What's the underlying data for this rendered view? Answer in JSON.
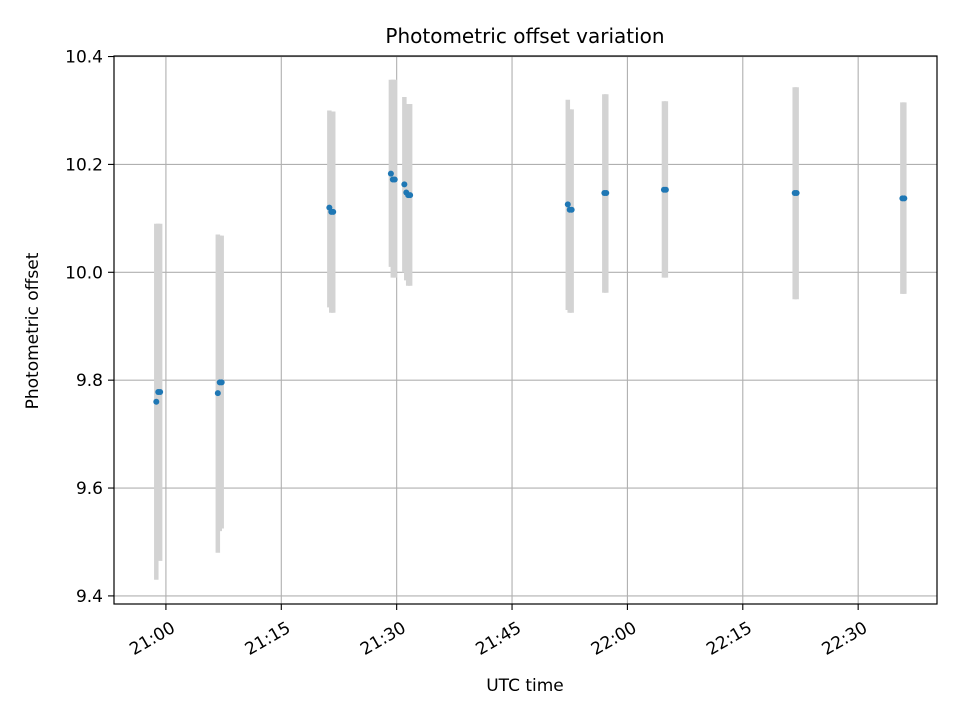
{
  "chart_data": {
    "type": "scatter",
    "title": "Photometric offset variation",
    "xlabel": "UTC time",
    "ylabel": "Photometric offset",
    "xlim": [
      "20:53:15",
      "22:40:15"
    ],
    "ylim": [
      9.385,
      10.401
    ],
    "x_ticks": [
      "21:00",
      "21:15",
      "21:30",
      "21:45",
      "22:00",
      "22:15",
      "22:30"
    ],
    "y_ticks": [
      9.4,
      9.6,
      9.8,
      10.0,
      10.2,
      10.4
    ],
    "grid": true,
    "colors": {
      "point": "#1f77b4",
      "errorbar": "#d3d3d3",
      "grid": "#b0b0b0",
      "axis": "#000000"
    },
    "points": [
      {
        "t": "20:58:45",
        "y": 9.76,
        "low": 9.43,
        "high": 10.09
      },
      {
        "t": "20:59:00",
        "y": 9.778,
        "low": 9.5,
        "high": 10.09
      },
      {
        "t": "20:59:15",
        "y": 9.778,
        "low": 9.465,
        "high": 10.09
      },
      {
        "t": "21:06:45",
        "y": 9.776,
        "low": 9.48,
        "high": 10.07
      },
      {
        "t": "21:07:00",
        "y": 9.796,
        "low": 9.52,
        "high": 10.068
      },
      {
        "t": "21:07:15",
        "y": 9.796,
        "low": 9.525,
        "high": 10.068
      },
      {
        "t": "21:21:15",
        "y": 10.12,
        "low": 9.935,
        "high": 10.3
      },
      {
        "t": "21:21:30",
        "y": 10.112,
        "low": 9.925,
        "high": 10.298
      },
      {
        "t": "21:21:45",
        "y": 10.112,
        "low": 9.925,
        "high": 10.298
      },
      {
        "t": "21:29:15",
        "y": 10.183,
        "low": 10.01,
        "high": 10.357
      },
      {
        "t": "21:29:30",
        "y": 10.172,
        "low": 9.99,
        "high": 10.357
      },
      {
        "t": "21:29:45",
        "y": 10.172,
        "low": 9.99,
        "high": 10.357
      },
      {
        "t": "21:31:00",
        "y": 10.163,
        "low": 10.0,
        "high": 10.325
      },
      {
        "t": "21:31:15",
        "y": 10.148,
        "low": 9.985,
        "high": 10.312
      },
      {
        "t": "21:31:30",
        "y": 10.143,
        "low": 9.975,
        "high": 10.312
      },
      {
        "t": "21:31:45",
        "y": 10.143,
        "low": 9.975,
        "high": 10.312
      },
      {
        "t": "21:52:15",
        "y": 10.126,
        "low": 9.93,
        "high": 10.32
      },
      {
        "t": "21:52:30",
        "y": 10.116,
        "low": 9.925,
        "high": 10.302
      },
      {
        "t": "21:52:45",
        "y": 10.116,
        "low": 9.925,
        "high": 10.302
      },
      {
        "t": "21:57:00",
        "y": 10.147,
        "low": 9.962,
        "high": 10.33
      },
      {
        "t": "21:57:15",
        "y": 10.147,
        "low": 9.962,
        "high": 10.33
      },
      {
        "t": "22:04:45",
        "y": 10.153,
        "low": 9.99,
        "high": 10.317
      },
      {
        "t": "22:05:00",
        "y": 10.153,
        "low": 9.99,
        "high": 10.317
      },
      {
        "t": "22:21:45",
        "y": 10.147,
        "low": 9.95,
        "high": 10.343
      },
      {
        "t": "22:22:00",
        "y": 10.147,
        "low": 9.95,
        "high": 10.343
      },
      {
        "t": "22:35:45",
        "y": 10.137,
        "low": 9.96,
        "high": 10.315
      },
      {
        "t": "22:36:00",
        "y": 10.137,
        "low": 9.96,
        "high": 10.315
      }
    ]
  }
}
